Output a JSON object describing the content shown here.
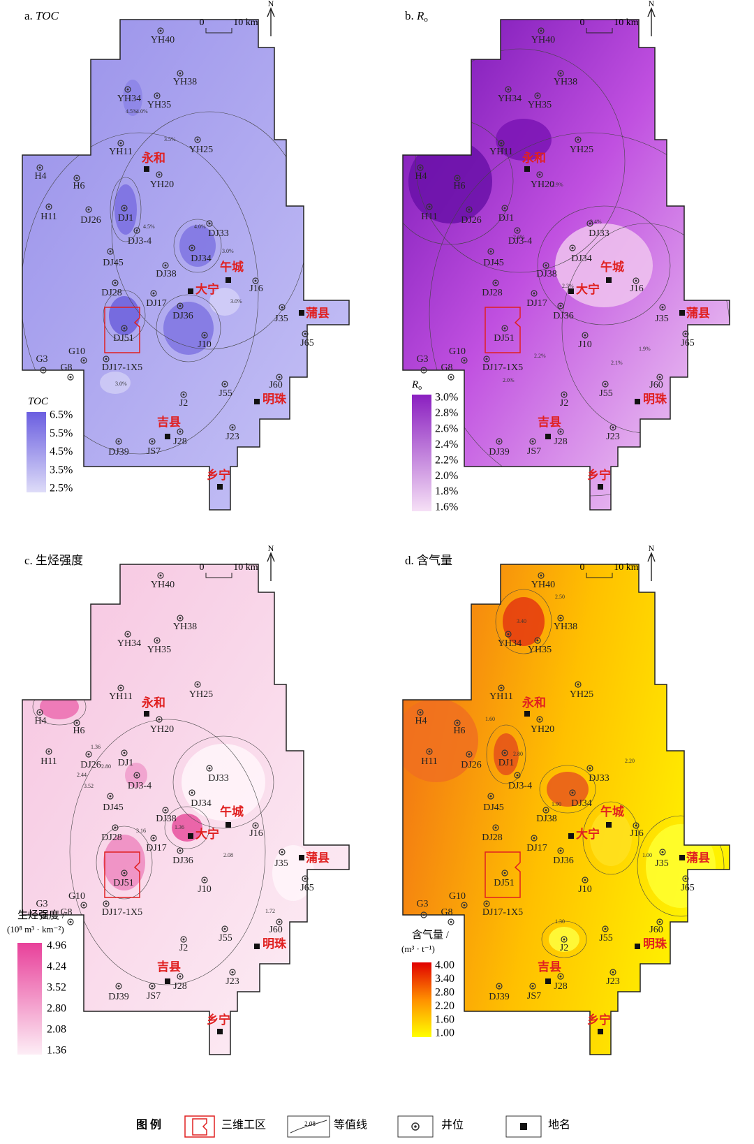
{
  "panels": [
    {
      "prefix": "a.",
      "name": "TOC",
      "sub": null,
      "legend_title": "TOC",
      "legend_ticks": [
        "6.5%",
        "5.5%",
        "4.5%",
        "3.5%",
        "2.5%"
      ],
      "contour_labels": [
        "4.5%",
        "4.0%",
        "3.5%",
        "3.0%",
        "4.0%",
        "3.0%",
        "4.5%",
        "3.0%"
      ]
    },
    {
      "prefix": "b.",
      "name": "R",
      "sub": "o",
      "legend_title": "R",
      "legend_sub": "o",
      "legend_ticks": [
        "3.0%",
        "2.8%",
        "2.6%",
        "2.4%",
        "2.2%",
        "2.0%",
        "1.8%",
        "1.6%"
      ],
      "contour_labels": [
        "2.9%",
        "2.6%",
        "2.4%",
        "2.3%",
        "2.2%",
        "2.1%",
        "2.0%",
        "1.9%"
      ]
    },
    {
      "prefix": "c.",
      "name": "生烃强度",
      "sub": null,
      "legend_title": "生烃强度 /",
      "legend_unit": "(10⁸ m³ · km⁻²)",
      "legend_ticks": [
        "4.96",
        "4.24",
        "3.52",
        "2.80",
        "2.08",
        "1.36"
      ],
      "contour_labels": [
        "2.44",
        "3.52",
        "2.80",
        "3.16",
        "1.36",
        "2.08",
        "1.72",
        "1.36"
      ]
    },
    {
      "prefix": "d.",
      "name": "含气量",
      "sub": null,
      "legend_title": "含气量 /",
      "legend_unit": "(m³ · t⁻¹)",
      "legend_ticks": [
        "4.00",
        "3.40",
        "2.80",
        "2.20",
        "1.60",
        "1.00"
      ],
      "contour_labels": [
        "3.40",
        "2.80",
        "2.50",
        "1.60",
        "2.20",
        "1.30",
        "1.00",
        "1.90"
      ]
    }
  ],
  "scale": {
    "zero": "0",
    "distance": "10 km",
    "north": "N"
  },
  "wells": [
    "YH40",
    "YH38",
    "YH34",
    "YH35",
    "YH11",
    "YH25",
    "YH20",
    "H4",
    "H6",
    "H11",
    "DJ26",
    "DJ1",
    "DJ3-4",
    "DJ33",
    "DJ34",
    "DJ45",
    "DJ38",
    "DJ28",
    "DJ17",
    "DJ36",
    "J16",
    "J35",
    "J10",
    "DJ51",
    "J65",
    "G10",
    "G3",
    "G8",
    "DJ17-1X5",
    "J60",
    "J55",
    "J2",
    "J23",
    "J28",
    "JS7",
    "DJ39"
  ],
  "towns": [
    "永和",
    "午城",
    "大宁",
    "蒲县",
    "明珠",
    "吉县",
    "乡宁"
  ],
  "legend": {
    "title": "图 例",
    "work_area": "三维工区",
    "contour_sample": "2.08",
    "contour": "等值线",
    "well": "井位",
    "town": "地名"
  }
}
